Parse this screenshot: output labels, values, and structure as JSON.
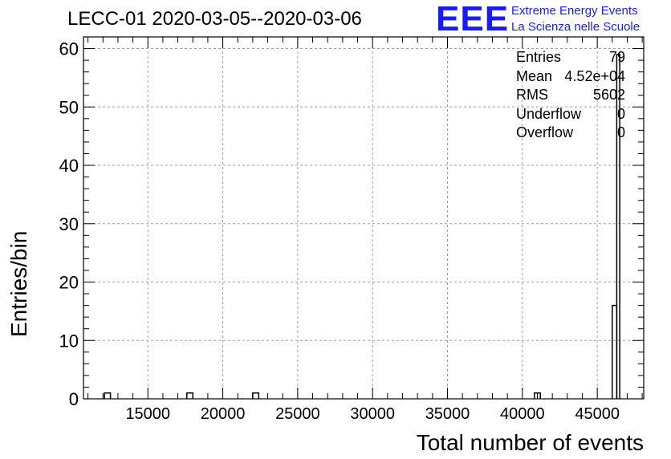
{
  "title": "LECC-01 2020-03-05--2020-03-06",
  "logo": {
    "mark": "EEE",
    "line1": "Extreme Energy Events",
    "line2": "La Scienza nelle Scuole"
  },
  "stats": [
    {
      "label": "Entries",
      "value": "79"
    },
    {
      "label": "Mean",
      "value": "4.52e+04"
    },
    {
      "label": "RMS",
      "value": "5602"
    },
    {
      "label": "Underflow",
      "value": "0"
    },
    {
      "label": "Overflow",
      "value": "0"
    }
  ],
  "chart_data": {
    "type": "bar",
    "style": "step-histogram",
    "title": "LECC-01 2020-03-05--2020-03-06",
    "xlabel": "Total number of events",
    "ylabel": "Entries/bin",
    "xlim": [
      10700,
      48100
    ],
    "ylim": [
      0,
      62
    ],
    "grid": true,
    "x_ticks": [
      15000,
      20000,
      25000,
      30000,
      35000,
      40000,
      45000
    ],
    "y_ticks": [
      0,
      10,
      20,
      30,
      40,
      50,
      60
    ],
    "bins": [
      {
        "x0": 12100,
        "x1": 12500,
        "count": 1
      },
      {
        "x0": 17600,
        "x1": 18000,
        "count": 1
      },
      {
        "x0": 22000,
        "x1": 22400,
        "count": 1
      },
      {
        "x0": 40800,
        "x1": 41200,
        "count": 1
      },
      {
        "x0": 46000,
        "x1": 46300,
        "count": 16
      },
      {
        "x0": 46300,
        "x1": 46500,
        "count": 59
      }
    ]
  }
}
